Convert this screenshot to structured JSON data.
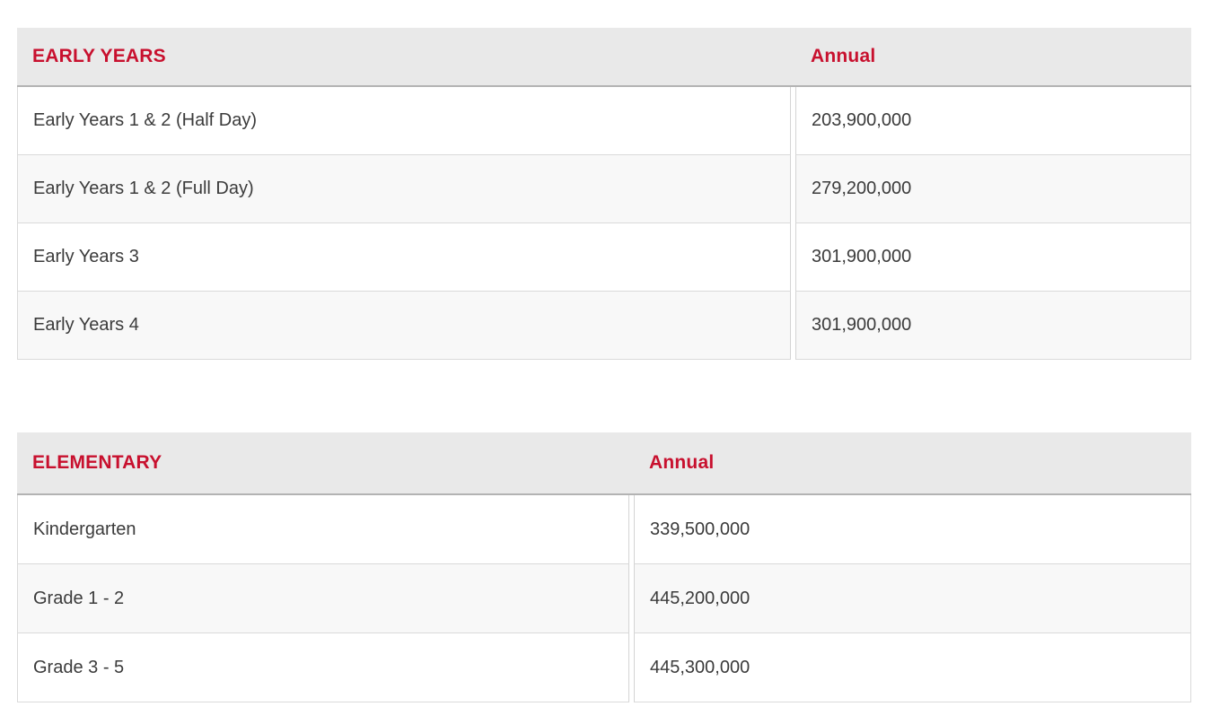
{
  "colors": {
    "accent_red": "#c8102e",
    "header_background": "#e9e9e9",
    "alternate_row_background": "#f8f8f8",
    "body_text": "#3b3b3b"
  },
  "chart_data": [
    {
      "type": "table",
      "title": "EARLY YEARS",
      "value_header": "Annual",
      "columns": [
        "EARLY YEARS",
        "Annual"
      ],
      "rows": [
        {
          "label": "Early Years 1 & 2 (Half Day)",
          "annual": "203,900,000",
          "annual_value": 203900000
        },
        {
          "label": "Early Years 1 & 2 (Full Day)",
          "annual": "279,200,000",
          "annual_value": 279200000
        },
        {
          "label": "Early Years 3",
          "annual": "301,900,000",
          "annual_value": 301900000
        },
        {
          "label": "Early Years 4",
          "annual": "301,900,000",
          "annual_value": 301900000
        }
      ]
    },
    {
      "type": "table",
      "title": "ELEMENTARY",
      "value_header": "Annual",
      "columns": [
        "ELEMENTARY",
        "Annual"
      ],
      "rows": [
        {
          "label": "Kindergarten",
          "annual": "339,500,000",
          "annual_value": 339500000
        },
        {
          "label": "Grade 1 - 2",
          "annual": "445,200,000",
          "annual_value": 445200000
        },
        {
          "label": "Grade 3 - 5",
          "annual": "445,300,000",
          "annual_value": 445300000
        }
      ]
    }
  ]
}
